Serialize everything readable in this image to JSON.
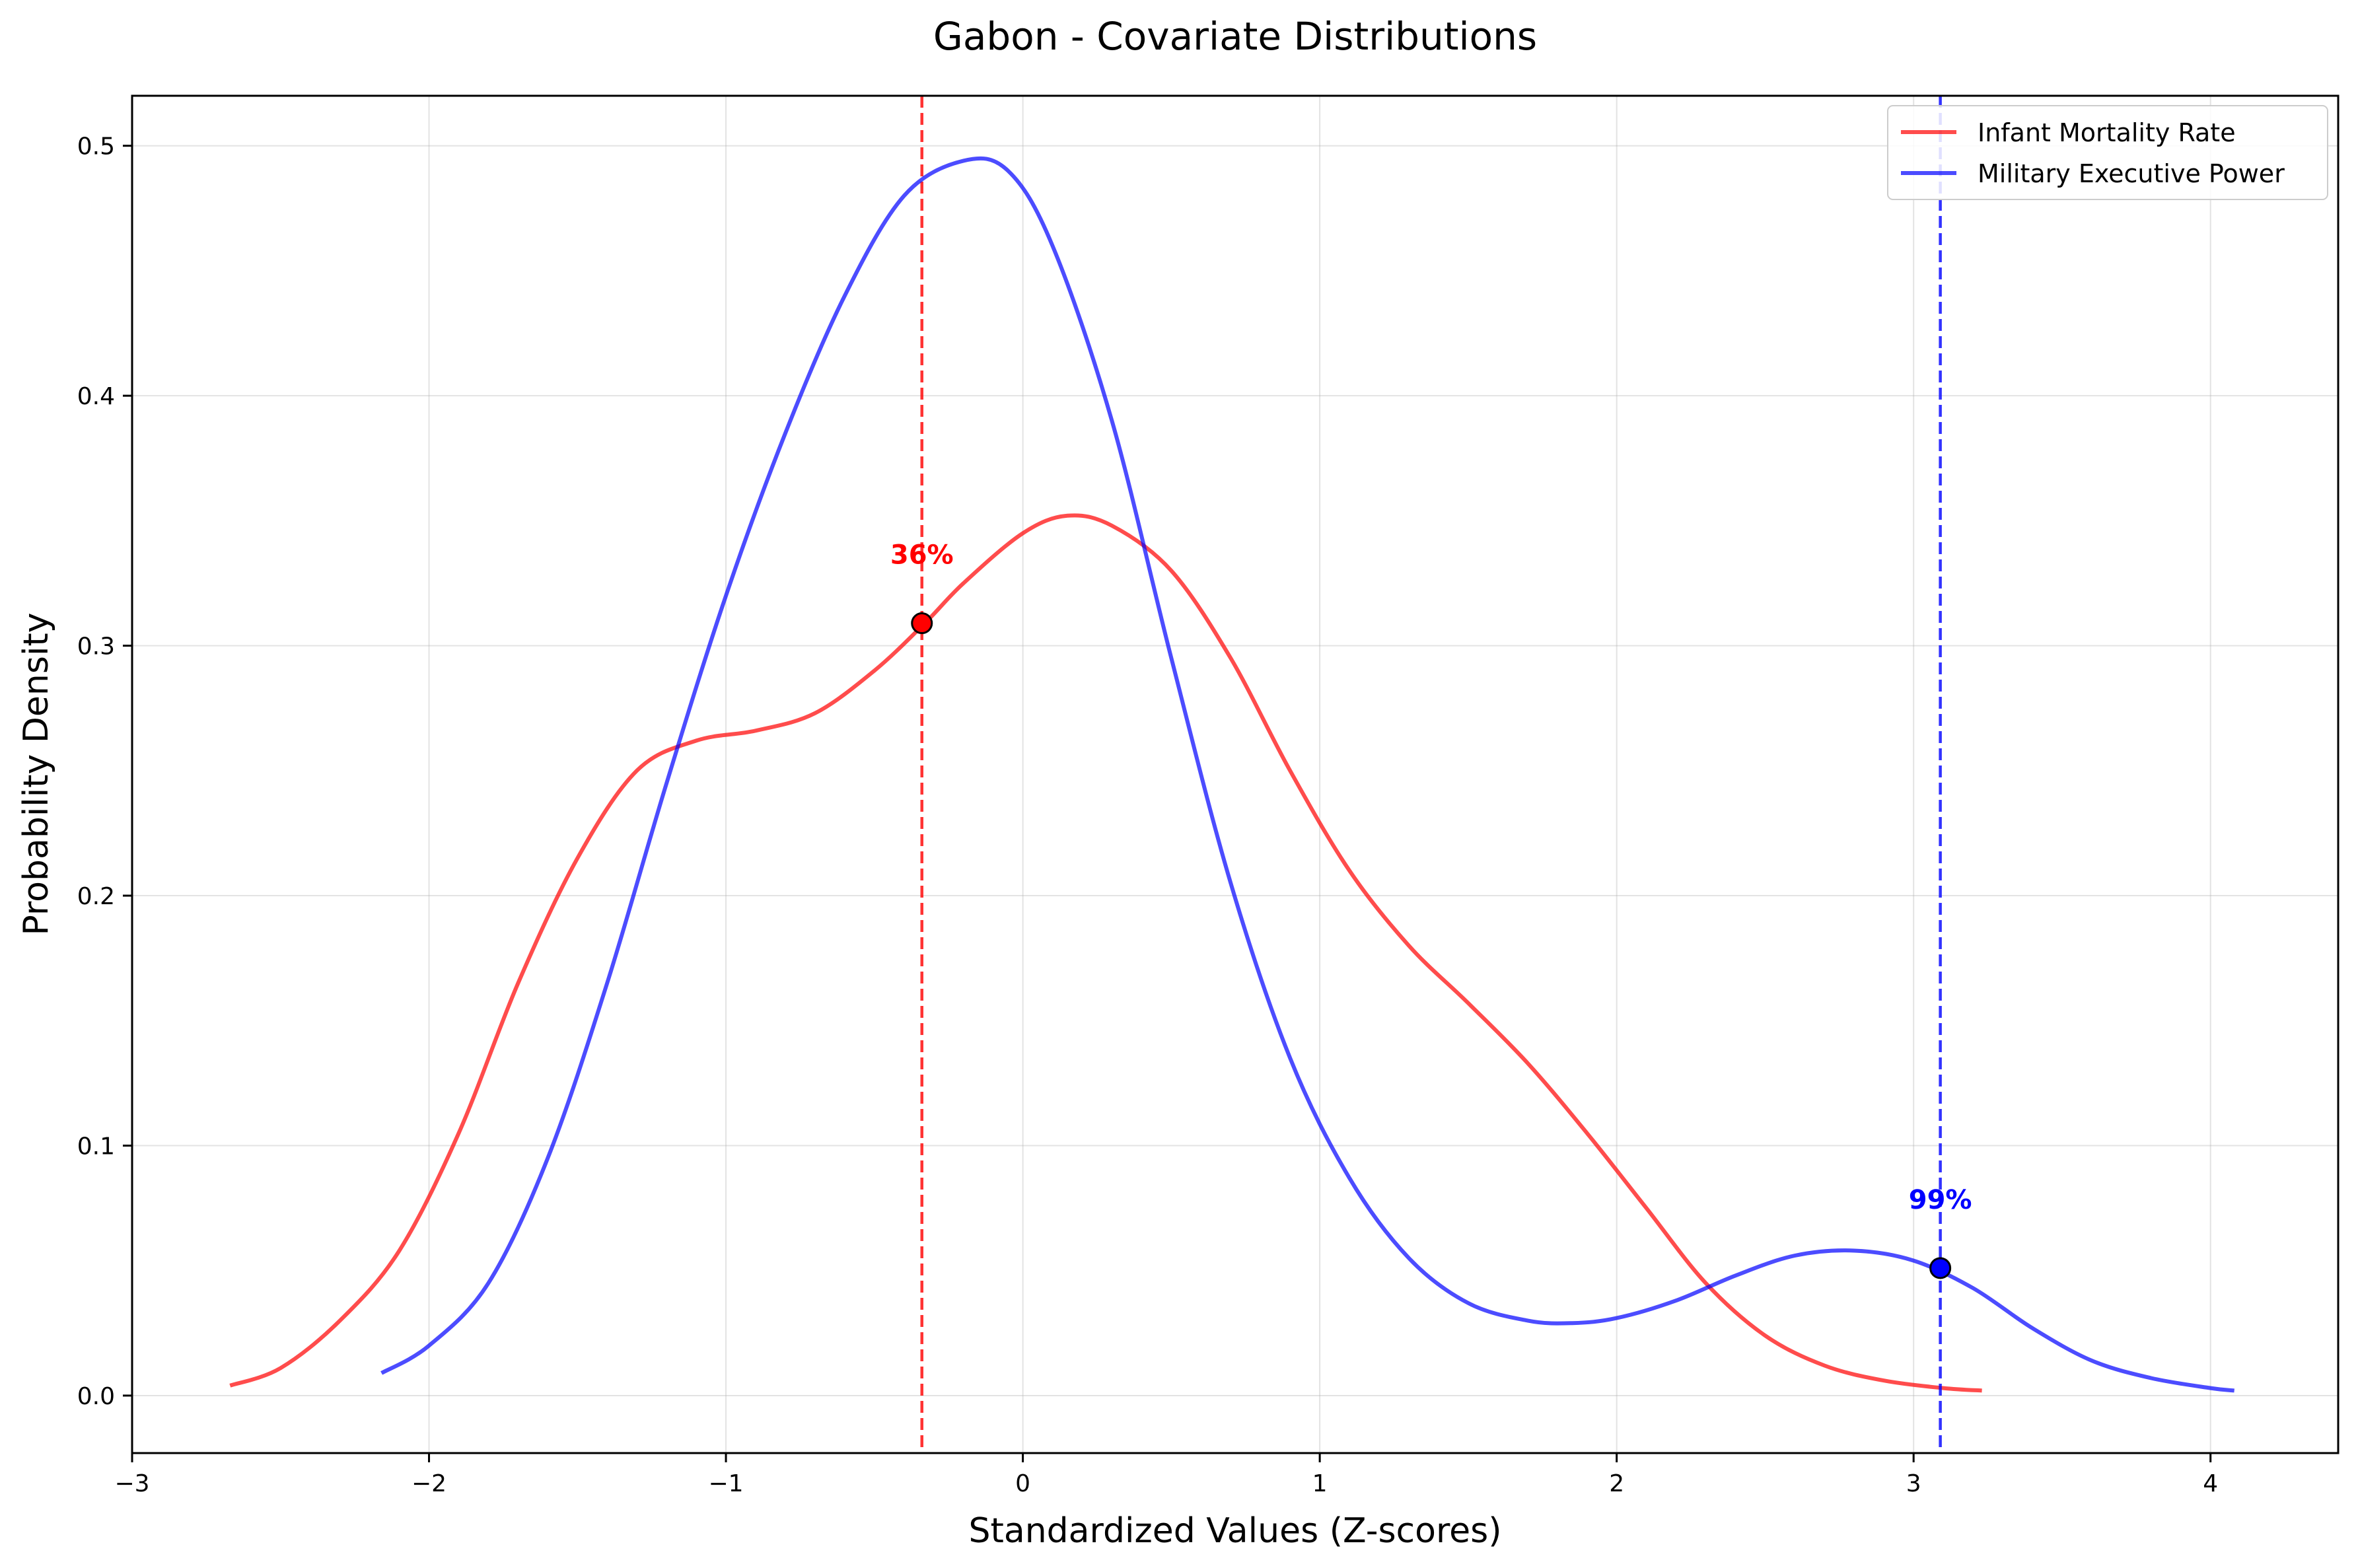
{
  "chart_data": {
    "type": "line",
    "title": "Gabon - Covariate Distributions",
    "xlabel": "Standardized Values (Z-scores)",
    "ylabel": "Probability Density",
    "xlim": [
      -3.0,
      4.43
    ],
    "ylim": [
      -0.023,
      0.52
    ],
    "x_ticks": [
      -3,
      -2,
      -1,
      0,
      1,
      2,
      3,
      4
    ],
    "x_tick_labels": [
      "−3",
      "−2",
      "−1",
      "0",
      "1",
      "2",
      "3",
      "4"
    ],
    "y_ticks": [
      0.0,
      0.1,
      0.2,
      0.3,
      0.4,
      0.5
    ],
    "y_tick_labels": [
      "0.0",
      "0.1",
      "0.2",
      "0.3",
      "0.4",
      "0.5"
    ],
    "grid": true,
    "legend_position": "top-right",
    "series": [
      {
        "name": "Infant Mortality Rate",
        "color": "#ff0000",
        "points": [
          [
            -2.67,
            0.004
          ],
          [
            -2.5,
            0.011
          ],
          [
            -2.3,
            0.03
          ],
          [
            -2.1,
            0.058
          ],
          [
            -1.9,
            0.105
          ],
          [
            -1.7,
            0.165
          ],
          [
            -1.5,
            0.215
          ],
          [
            -1.3,
            0.25
          ],
          [
            -1.1,
            0.262
          ],
          [
            -0.9,
            0.266
          ],
          [
            -0.7,
            0.273
          ],
          [
            -0.5,
            0.29
          ],
          [
            -0.33,
            0.309
          ],
          [
            -0.2,
            0.325
          ],
          [
            0.0,
            0.345
          ],
          [
            0.15,
            0.352
          ],
          [
            0.3,
            0.348
          ],
          [
            0.5,
            0.33
          ],
          [
            0.7,
            0.295
          ],
          [
            0.9,
            0.25
          ],
          [
            1.1,
            0.21
          ],
          [
            1.3,
            0.18
          ],
          [
            1.5,
            0.157
          ],
          [
            1.7,
            0.133
          ],
          [
            1.9,
            0.105
          ],
          [
            2.1,
            0.075
          ],
          [
            2.3,
            0.045
          ],
          [
            2.5,
            0.024
          ],
          [
            2.7,
            0.012
          ],
          [
            2.9,
            0.006
          ],
          [
            3.1,
            0.003
          ],
          [
            3.23,
            0.002
          ]
        ],
        "marker": {
          "x": -0.34,
          "y": 0.309,
          "label": "36%"
        }
      },
      {
        "name": "Military Executive Power",
        "color": "#0000ff",
        "points": [
          [
            -2.16,
            0.009
          ],
          [
            -2.0,
            0.02
          ],
          [
            -1.8,
            0.045
          ],
          [
            -1.6,
            0.095
          ],
          [
            -1.4,
            0.165
          ],
          [
            -1.2,
            0.245
          ],
          [
            -1.0,
            0.32
          ],
          [
            -0.8,
            0.385
          ],
          [
            -0.6,
            0.44
          ],
          [
            -0.4,
            0.48
          ],
          [
            -0.2,
            0.494
          ],
          [
            -0.05,
            0.49
          ],
          [
            0.1,
            0.46
          ],
          [
            0.3,
            0.39
          ],
          [
            0.5,
            0.295
          ],
          [
            0.7,
            0.205
          ],
          [
            0.9,
            0.135
          ],
          [
            1.1,
            0.087
          ],
          [
            1.3,
            0.055
          ],
          [
            1.5,
            0.037
          ],
          [
            1.7,
            0.03
          ],
          [
            1.85,
            0.029
          ],
          [
            2.0,
            0.031
          ],
          [
            2.2,
            0.038
          ],
          [
            2.4,
            0.048
          ],
          [
            2.6,
            0.056
          ],
          [
            2.8,
            0.058
          ],
          [
            3.0,
            0.054
          ],
          [
            3.2,
            0.043
          ],
          [
            3.4,
            0.027
          ],
          [
            3.6,
            0.014
          ],
          [
            3.8,
            0.007
          ],
          [
            4.0,
            0.003
          ],
          [
            4.08,
            0.002
          ]
        ],
        "marker": {
          "x": 3.09,
          "y": 0.051,
          "label": "99%"
        }
      }
    ]
  }
}
